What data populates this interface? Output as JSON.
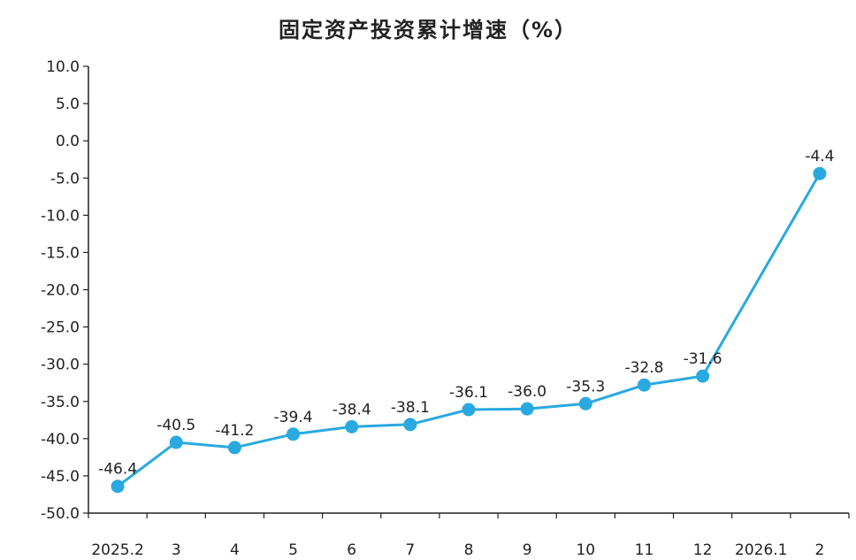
{
  "chart_data": {
    "type": "line",
    "title": "固定资产投资累计增速（%）",
    "categories": [
      "2025.2",
      "3",
      "4",
      "5",
      "6",
      "7",
      "8",
      "9",
      "10",
      "11",
      "12",
      "2026.1",
      "2"
    ],
    "series": [
      {
        "values": [
          -46.4,
          -40.5,
          -41.2,
          -39.4,
          -38.4,
          -38.1,
          -36.1,
          -36.0,
          -35.3,
          -32.8,
          -31.6,
          null,
          -4.4
        ]
      }
    ],
    "data_labels": [
      "-46.4",
      "-40.5",
      "-41.2",
      "-39.4",
      "-38.4",
      "-38.1",
      "-36.1",
      "-36.0",
      "-35.3",
      "-32.8",
      "-31.6",
      "",
      "-4.4"
    ],
    "yticks": [
      "10.0",
      "5.0",
      "0.0",
      "-5.0",
      "-10.0",
      "-15.0",
      "-20.0",
      "-25.0",
      "-30.0",
      "-35.0",
      "-40.0",
      "-45.0",
      "-50.0"
    ],
    "ylim": [
      -50,
      10
    ],
    "grid": false,
    "line_color": "#29a9e0",
    "marker_color": "#29a9e0"
  }
}
